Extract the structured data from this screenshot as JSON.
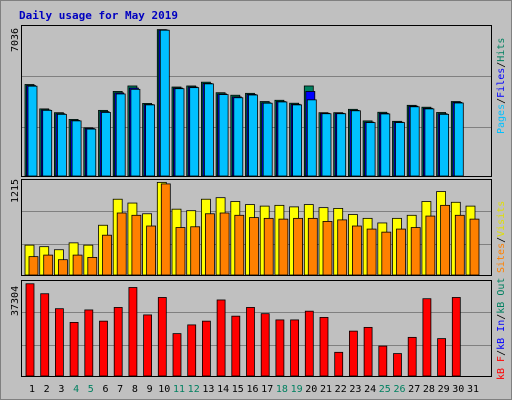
{
  "title": "Daily usage for May 2019",
  "colors": {
    "background": "#c0c0c0",
    "title": "#0000c0",
    "hits": "#008060",
    "files": "#0000ff",
    "pages": "#00c0ff",
    "visits": "#ffff00",
    "sites": "#ff8000",
    "kb_out": "#008060",
    "kb_in": "#0000ff",
    "kb_f": "#ff0000",
    "weekend_label": "#008060",
    "weekday_label": "#000000"
  },
  "chart_data": [
    {
      "type": "bar",
      "panel": "top",
      "ymax_label": "7036",
      "ylim": [
        0,
        7036
      ],
      "right_labels": [
        "Pages",
        "/",
        "Files",
        "/",
        "Hits"
      ],
      "categories": [
        "1",
        "2",
        "3",
        "4",
        "5",
        "6",
        "7",
        "8",
        "9",
        "10",
        "11",
        "12",
        "13",
        "14",
        "15",
        "16",
        "17",
        "18",
        "19",
        "20",
        "21",
        "22",
        "23",
        "24",
        "25",
        "26",
        "27",
        "28",
        "29",
        "30",
        "31"
      ],
      "weekend_days": [
        "4",
        "5",
        "11",
        "12",
        "18",
        "19",
        "25",
        "26"
      ],
      "series": [
        {
          "name": "Hits",
          "values": [
            4350,
            3190,
            3010,
            2690,
            2290,
            3120,
            4020,
            4280,
            3450,
            6960,
            4230,
            4280,
            4460,
            3960,
            3840,
            3930,
            3540,
            3600,
            3460,
            4280,
            3010,
            3010,
            3170,
            2620,
            3030,
            2600,
            3360,
            3270,
            3020,
            3540,
            0
          ]
        },
        {
          "name": "Files",
          "values": [
            4300,
            3140,
            2960,
            2640,
            2260,
            3060,
            3950,
            4180,
            3400,
            6940,
            4180,
            4230,
            4400,
            3900,
            3760,
            3880,
            3480,
            3540,
            3410,
            4020,
            2980,
            2980,
            3120,
            2560,
            2980,
            2560,
            3320,
            3220,
            2960,
            3500,
            0
          ]
        },
        {
          "name": "Pages",
          "values": [
            4270,
            3120,
            2930,
            2620,
            2230,
            3020,
            3900,
            4120,
            3380,
            6930,
            4150,
            4200,
            4380,
            3870,
            3720,
            3850,
            3460,
            3520,
            3380,
            3620,
            2960,
            2960,
            3100,
            2540,
            2950,
            2540,
            3290,
            3190,
            2930,
            3470,
            0
          ]
        }
      ]
    },
    {
      "type": "bar",
      "panel": "middle",
      "ymax_label": "1215",
      "ylim": [
        0,
        1215
      ],
      "right_labels": [
        "Visits",
        "/",
        "Sites"
      ],
      "categories": [
        "1",
        "2",
        "3",
        "4",
        "5",
        "6",
        "7",
        "8",
        "9",
        "10",
        "11",
        "12",
        "13",
        "14",
        "15",
        "16",
        "17",
        "18",
        "19",
        "20",
        "21",
        "22",
        "23",
        "24",
        "25",
        "26",
        "27",
        "28",
        "29",
        "30",
        "31"
      ],
      "series": [
        {
          "name": "Visits",
          "values": [
            390,
            370,
            330,
            420,
            390,
            650,
            990,
            940,
            800,
            1210,
            860,
            840,
            990,
            1010,
            960,
            920,
            900,
            910,
            890,
            920,
            880,
            870,
            790,
            740,
            680,
            740,
            780,
            960,
            1090,
            950,
            900
          ]
        },
        {
          "name": "Sites",
          "values": [
            240,
            260,
            200,
            260,
            230,
            520,
            810,
            780,
            640,
            1190,
            620,
            630,
            800,
            810,
            780,
            750,
            740,
            730,
            740,
            740,
            700,
            720,
            640,
            600,
            560,
            600,
            620,
            770,
            910,
            780,
            730
          ]
        }
      ]
    },
    {
      "type": "bar",
      "panel": "bottom",
      "ymax_label": "37304",
      "ylim": [
        0,
        37304
      ],
      "right_labels": [
        "kB F",
        "/",
        "kB In",
        "/",
        "kB Out"
      ],
      "categories": [
        "1",
        "2",
        "3",
        "4",
        "5",
        "6",
        "7",
        "8",
        "9",
        "10",
        "11",
        "12",
        "13",
        "14",
        "15",
        "16",
        "17",
        "18",
        "19",
        "20",
        "21",
        "22",
        "23",
        "24",
        "25",
        "26",
        "27",
        "28",
        "29",
        "30",
        "31"
      ],
      "series": [
        {
          "name": "kB F",
          "values": [
            37000,
            33000,
            27000,
            21500,
            26500,
            22000,
            27500,
            35500,
            24500,
            31500,
            17000,
            20500,
            22000,
            30500,
            24000,
            27500,
            25000,
            22500,
            22500,
            26000,
            23500,
            9500,
            18000,
            19500,
            12000,
            9000,
            15500,
            31000,
            15000,
            31500,
            0
          ]
        }
      ]
    }
  ]
}
